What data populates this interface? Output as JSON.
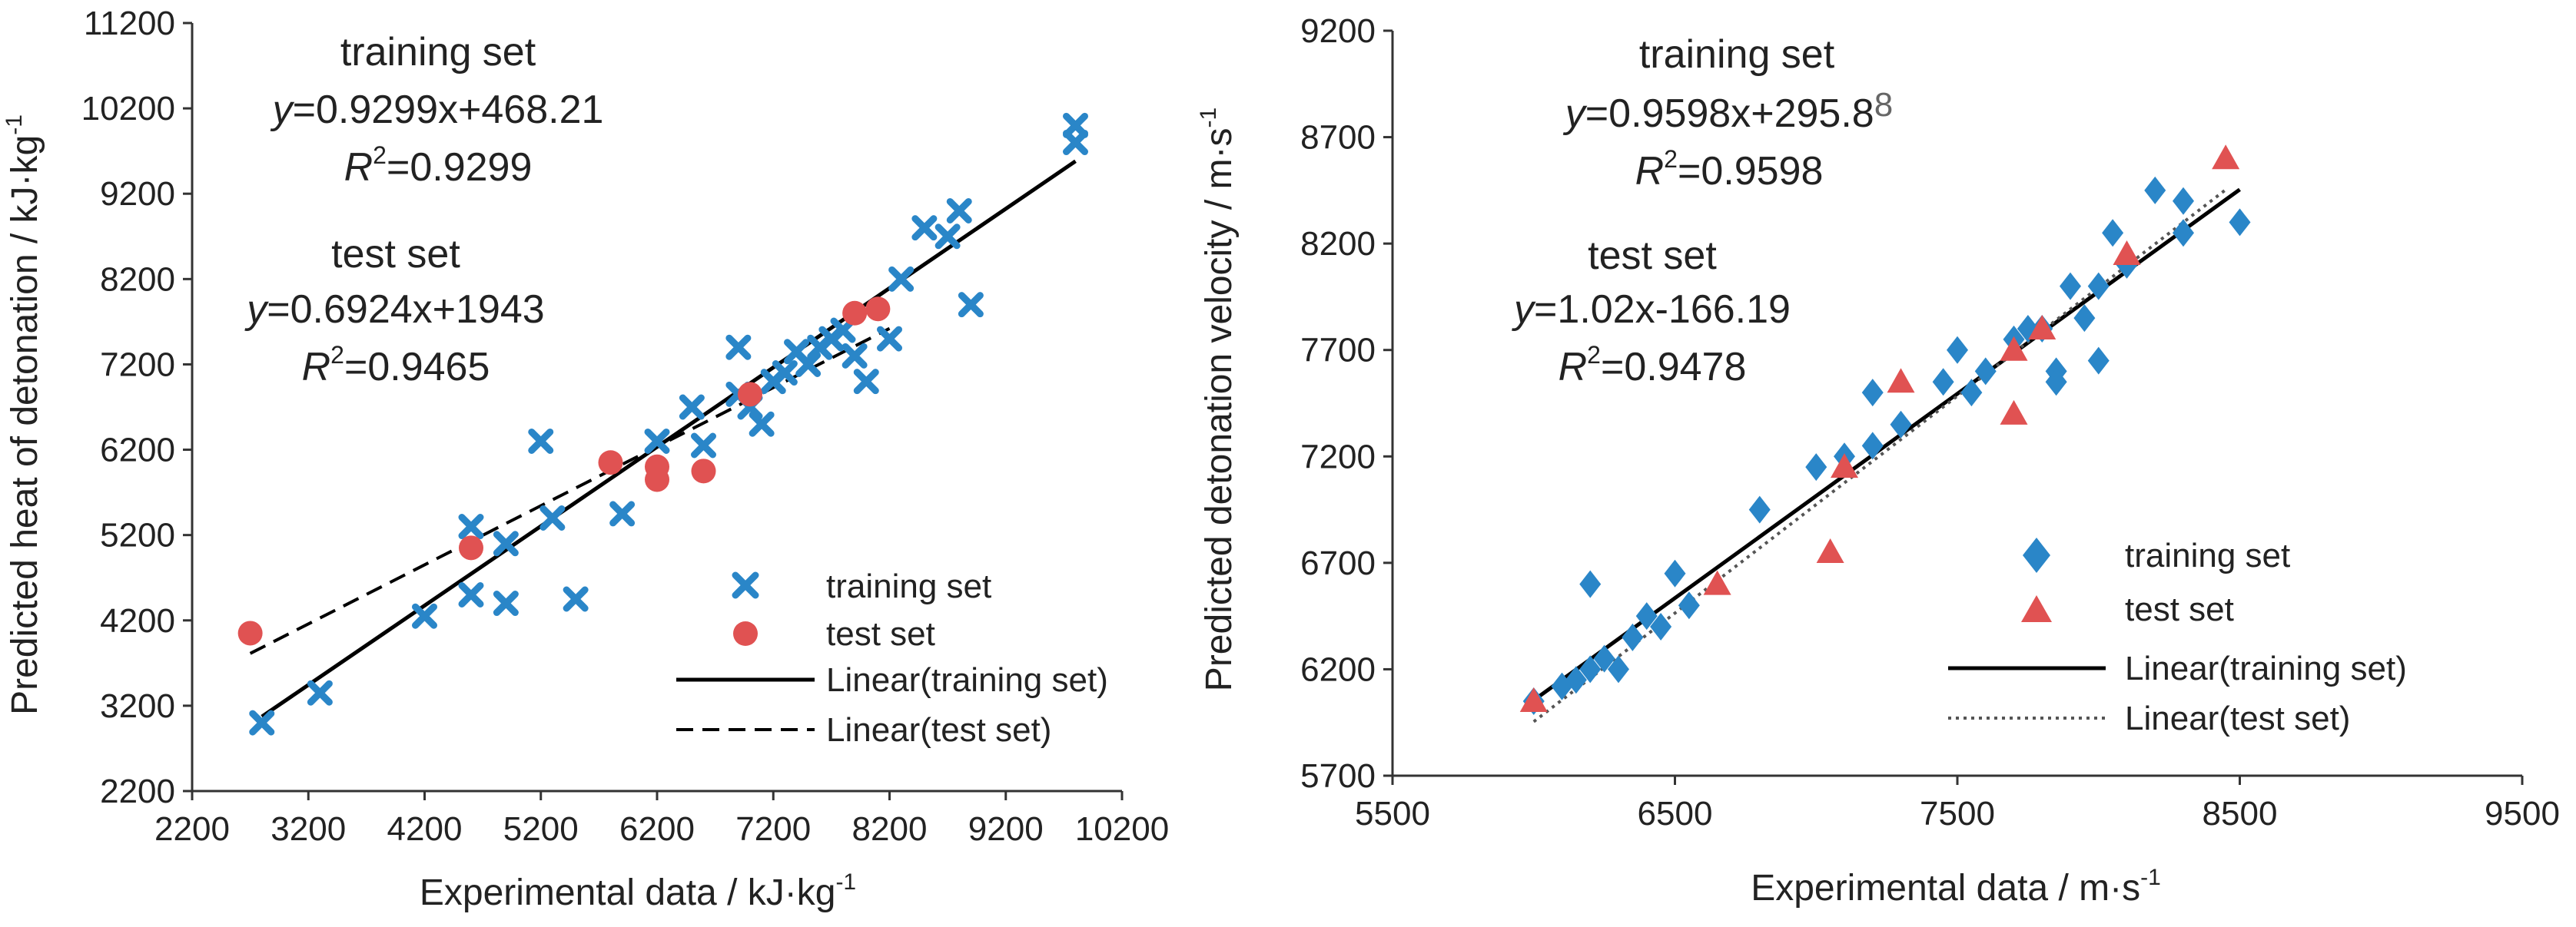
{
  "colors": {
    "training": "#2a86c8",
    "test": "#e05252",
    "line": "#000000",
    "axis": "#333333"
  },
  "chart_data": [
    {
      "type": "scatter",
      "xlabel": "Experimental data / kJ·kg",
      "xlabel_sup": "-1",
      "ylabel": "Predicted heat of detonation / kJ·kg",
      "ylabel_sup": "-1",
      "xlim": [
        2200,
        10200
      ],
      "ylim": [
        2200,
        11200
      ],
      "xticks": [
        "2200",
        "3200",
        "4200",
        "5200",
        "6200",
        "7200",
        "8200",
        "9200",
        "10200"
      ],
      "yticks": [
        "2200",
        "3200",
        "4200",
        "5200",
        "6200",
        "7200",
        "8200",
        "9200",
        "10200",
        "11200"
      ],
      "annotations": {
        "train_title": "training set",
        "train_eq_prefix": "y",
        "train_eq_rest": "=0.9299x+468.21",
        "train_r2": "=0.9299",
        "test_title": "test set",
        "test_eq_prefix": "y",
        "test_eq_rest": "=0.6924x+1943",
        "test_r2": "=0.9465",
        "r_letter": "R",
        "r_sup": "2"
      },
      "legend": [
        "training set",
        "test set",
        "Linear(training set)",
        "Linear(test set)"
      ],
      "series": [
        {
          "name": "training set",
          "marker": "x",
          "points": [
            [
              2800,
              3000
            ],
            [
              3300,
              3350
            ],
            [
              4200,
              4250
            ],
            [
              4600,
              5300
            ],
            [
              4600,
              4500
            ],
            [
              4900,
              5100
            ],
            [
              4900,
              4400
            ],
            [
              5200,
              6300
            ],
            [
              5300,
              5400
            ],
            [
              5500,
              4450
            ],
            [
              5900,
              5450
            ],
            [
              6200,
              6300
            ],
            [
              6500,
              6700
            ],
            [
              6600,
              6250
            ],
            [
              6900,
              6850
            ],
            [
              6900,
              7400
            ],
            [
              7000,
              6700
            ],
            [
              7100,
              6500
            ],
            [
              7200,
              7000
            ],
            [
              7300,
              7100
            ],
            [
              7400,
              7350
            ],
            [
              7500,
              7200
            ],
            [
              7600,
              7400
            ],
            [
              7700,
              7500
            ],
            [
              7800,
              7600
            ],
            [
              7900,
              7300
            ],
            [
              8000,
              7000
            ],
            [
              8200,
              7500
            ],
            [
              8300,
              8200
            ],
            [
              8500,
              8800
            ],
            [
              8700,
              8700
            ],
            [
              8800,
              9000
            ],
            [
              8900,
              7900
            ],
            [
              9800,
              10000
            ],
            [
              9800,
              9800
            ]
          ]
        },
        {
          "name": "test set",
          "marker": "circle",
          "points": [
            [
              2700,
              4050
            ],
            [
              4600,
              5050
            ],
            [
              5800,
              6050
            ],
            [
              6200,
              6000
            ],
            [
              6200,
              5850
            ],
            [
              6600,
              5950
            ],
            [
              7000,
              6850
            ],
            [
              7900,
              7800
            ],
            [
              8100,
              7850
            ]
          ]
        }
      ],
      "fits": [
        {
          "name": "Linear(training set)",
          "slope": 0.9299,
          "intercept": 468.21,
          "x": [
            2800,
            9800
          ],
          "style": "solid"
        },
        {
          "name": "Linear(test set)",
          "slope": 0.6924,
          "intercept": 1943,
          "x": [
            2700,
            8200
          ],
          "style": "dashed"
        }
      ]
    },
    {
      "type": "scatter",
      "xlabel": "Experimental data / m·s",
      "xlabel_sup": "-1",
      "ylabel": "Predicted detonation velocity / m·s",
      "ylabel_sup": "-1",
      "xlim": [
        5500,
        9500
      ],
      "ylim": [
        5700,
        9200
      ],
      "xticks": [
        "5500",
        "6500",
        "7500",
        "8500",
        "9500"
      ],
      "yticks": [
        "5700",
        "6200",
        "6700",
        "7200",
        "7700",
        "8200",
        "8700",
        "9200"
      ],
      "annotations": {
        "train_title": "training set",
        "train_eq_prefix": "y",
        "train_eq_rest": "=0.9598x+295.8",
        "train_eq_extra": "8",
        "train_r2": "=0.9598",
        "test_title": "test set",
        "test_eq_prefix": "y",
        "test_eq_rest": "=1.02x-166.19",
        "test_r2": "=0.9478",
        "r_letter": "R",
        "r_sup": "2"
      },
      "legend": [
        "training set",
        "test set",
        "Linear(training set)",
        "Linear(test set)"
      ],
      "series": [
        {
          "name": "training set",
          "marker": "diamond",
          "points": [
            [
              6000,
              6050
            ],
            [
              6100,
              6120
            ],
            [
              6150,
              6150
            ],
            [
              6200,
              6200
            ],
            [
              6200,
              6600
            ],
            [
              6250,
              6250
            ],
            [
              6300,
              6200
            ],
            [
              6350,
              6350
            ],
            [
              6400,
              6450
            ],
            [
              6450,
              6400
            ],
            [
              6500,
              6650
            ],
            [
              6550,
              6500
            ],
            [
              6800,
              6950
            ],
            [
              7000,
              7150
            ],
            [
              7100,
              7200
            ],
            [
              7200,
              7250
            ],
            [
              7200,
              7500
            ],
            [
              7300,
              7350
            ],
            [
              7450,
              7550
            ],
            [
              7500,
              7700
            ],
            [
              7550,
              7500
            ],
            [
              7600,
              7600
            ],
            [
              7700,
              7750
            ],
            [
              7750,
              7800
            ],
            [
              7800,
              7800
            ],
            [
              7850,
              7600
            ],
            [
              7850,
              7550
            ],
            [
              7900,
              8000
            ],
            [
              7950,
              7850
            ],
            [
              8000,
              7650
            ],
            [
              8000,
              8000
            ],
            [
              8050,
              8250
            ],
            [
              8100,
              8100
            ],
            [
              8200,
              8450
            ],
            [
              8300,
              8400
            ],
            [
              8300,
              8250
            ],
            [
              8500,
              8300
            ]
          ]
        },
        {
          "name": "test set",
          "marker": "triangle",
          "points": [
            [
              6000,
              6050
            ],
            [
              6650,
              6600
            ],
            [
              7050,
              6750
            ],
            [
              7100,
              7150
            ],
            [
              7300,
              7550
            ],
            [
              7700,
              7700
            ],
            [
              7700,
              7400
            ],
            [
              7800,
              7800
            ],
            [
              8100,
              8150
            ],
            [
              8450,
              8600
            ]
          ]
        }
      ],
      "fits": [
        {
          "name": "Linear(training set)",
          "slope": 0.9598,
          "intercept": 295.8,
          "x": [
            6000,
            8500
          ],
          "style": "solid"
        },
        {
          "name": "Linear(test set)",
          "slope": 1.02,
          "intercept": -166.19,
          "x": [
            6000,
            8450
          ],
          "style": "dotted"
        }
      ]
    }
  ]
}
